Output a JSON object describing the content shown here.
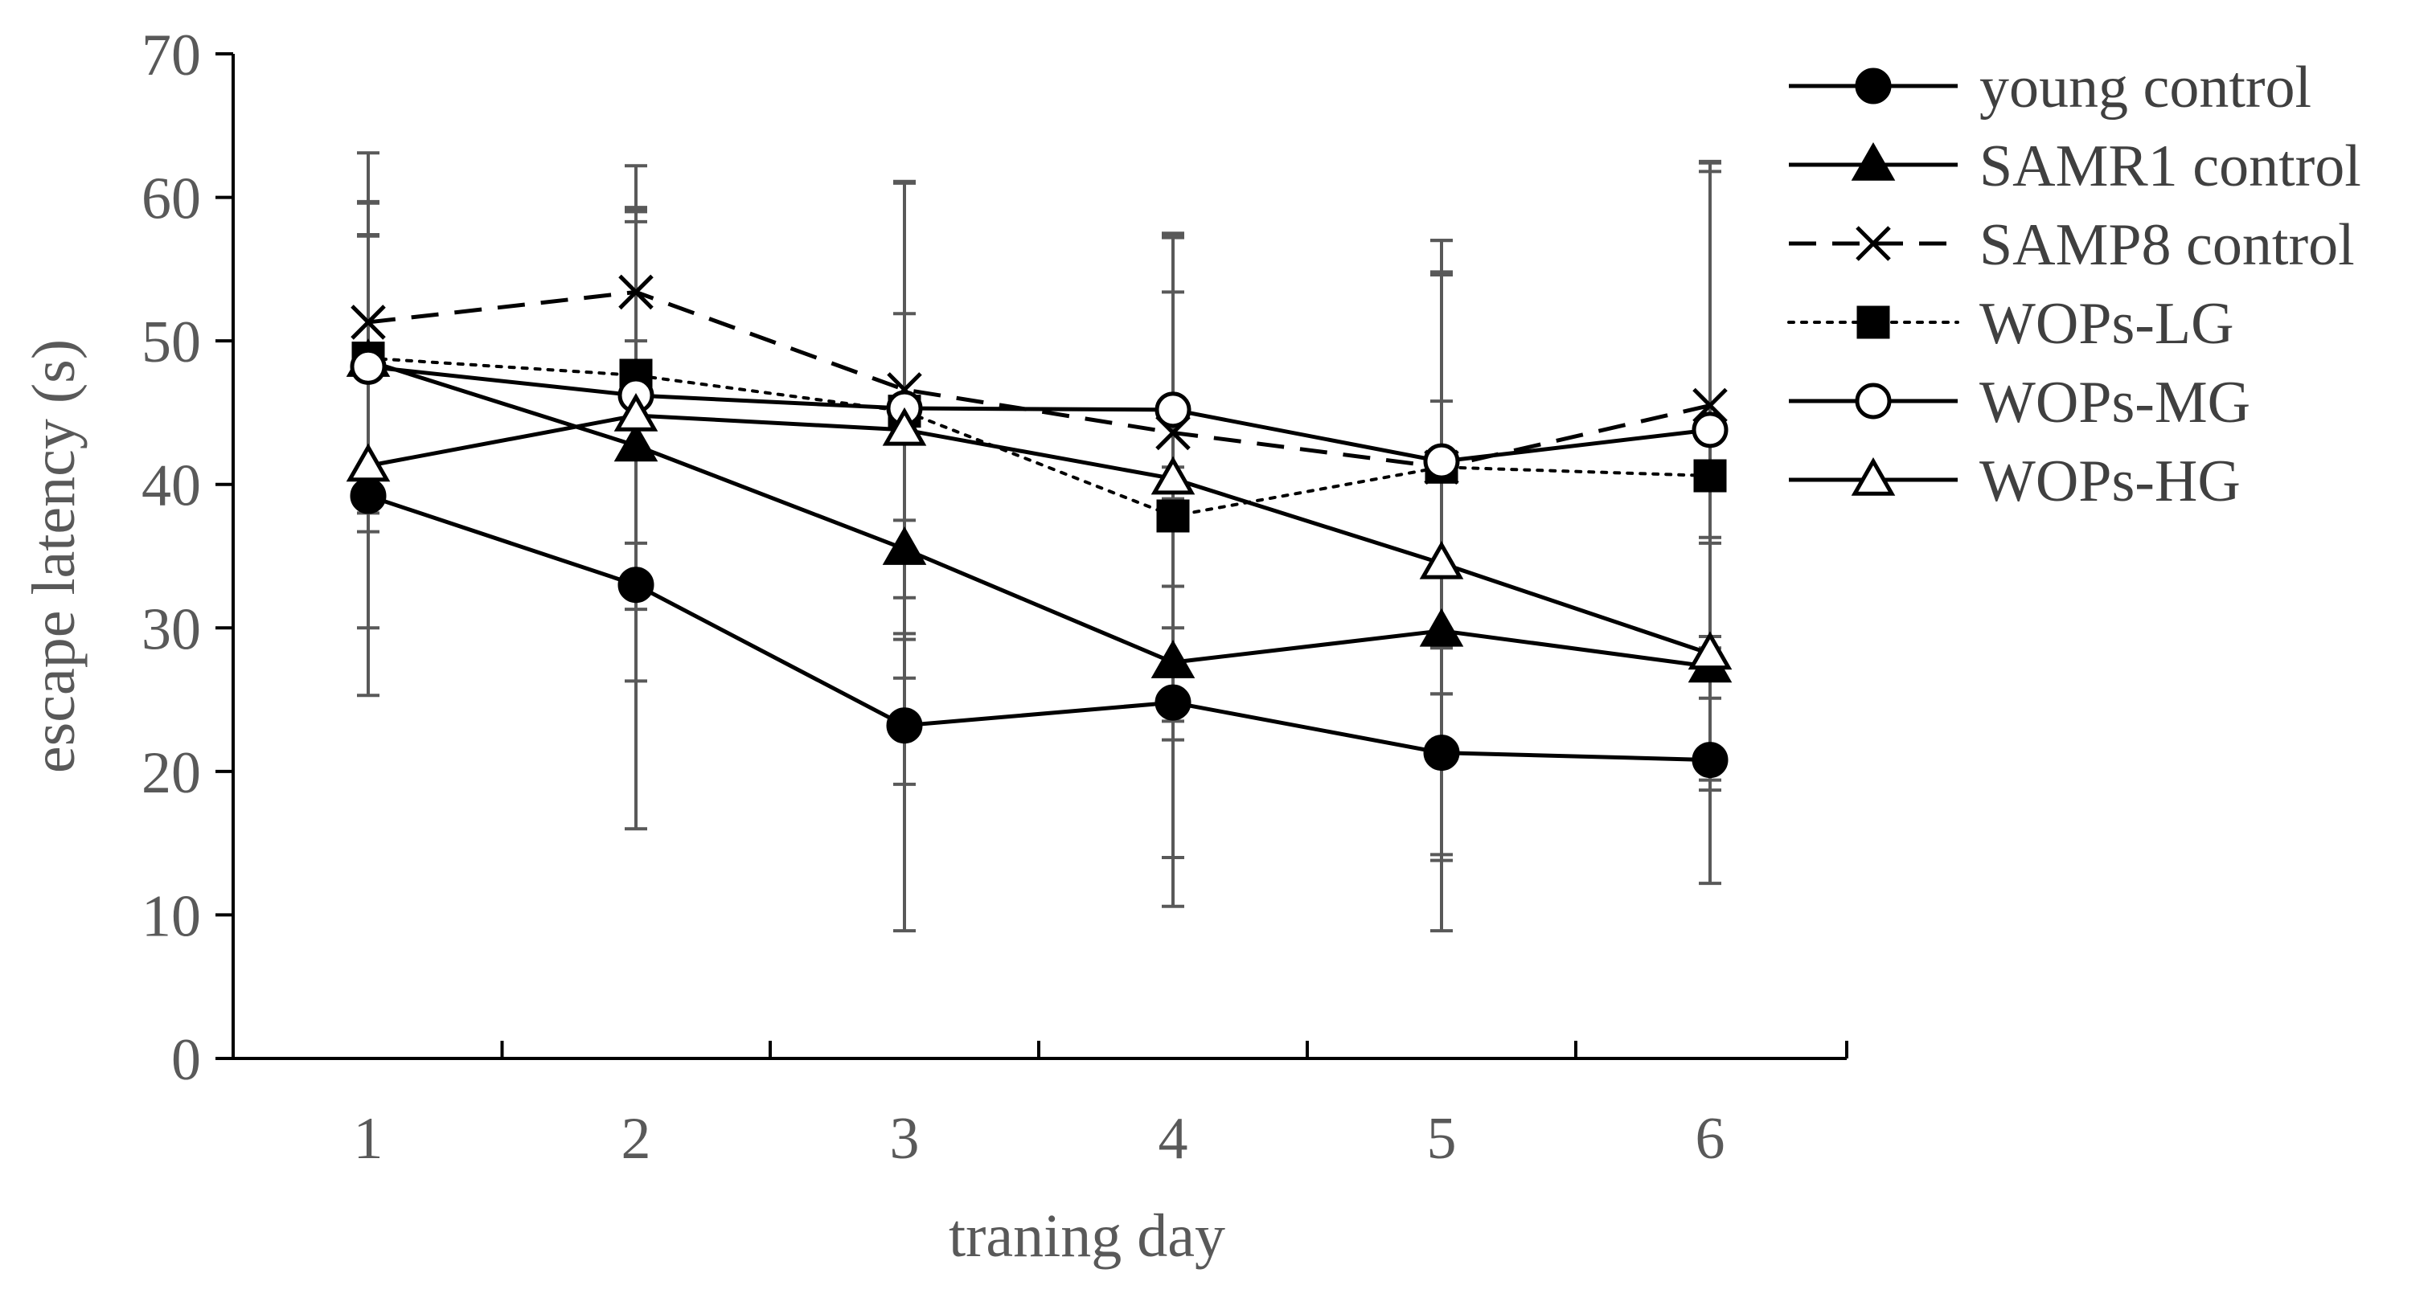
{
  "chart_data": {
    "type": "line",
    "xlabel": "traning day",
    "ylabel": "escape latency (s)",
    "categories": [
      "1",
      "2",
      "3",
      "4",
      "5",
      "6"
    ],
    "ylim": [
      0,
      70
    ],
    "yticks": [
      0,
      10,
      20,
      30,
      40,
      50,
      60,
      70
    ],
    "yticklabels": [
      "0",
      "10",
      "20",
      "30",
      "40",
      "50",
      "60",
      "70"
    ],
    "legend_position": "top-right",
    "series": [
      {
        "name": "young control",
        "line_style": "solid",
        "marker": "filled-circle",
        "values": [
          39.2,
          33.0,
          23.2,
          24.8,
          21.3,
          20.8
        ],
        "error": [
          9.2,
          17.0,
          14.3,
          14.2,
          12.4,
          8.6
        ]
      },
      {
        "name": "SAMR1 control",
        "line_style": "solid",
        "marker": "filled-triangle",
        "values": [
          48.6,
          42.7,
          35.5,
          27.6,
          29.8,
          27.3
        ],
        "error": [
          8.8,
          16.4,
          16.4,
          13.6,
          16.0,
          8.6
        ]
      },
      {
        "name": "SAMP8 control",
        "line_style": "dashed",
        "marker": "x",
        "values": [
          51.3,
          53.4,
          46.6,
          43.6,
          41.2,
          45.5
        ],
        "error": [
          11.8,
          8.8,
          14.5,
          13.6,
          15.8,
          16.9
        ]
      },
      {
        "name": "WOPs-LG",
        "line_style": "dotted",
        "marker": "filled-square",
        "values": [
          48.8,
          47.6,
          45.1,
          37.8,
          41.2,
          40.6
        ],
        "error": [
          10.8,
          11.7,
          15.9,
          15.6,
          15.8,
          21.2
        ]
      },
      {
        "name": "WOPs-MG",
        "line_style": "solid",
        "marker": "open-circle",
        "values": [
          48.2,
          46.2,
          45.3,
          45.2,
          41.6,
          43.8
        ],
        "error": [
          11.5,
          12.8,
          15.7,
          12.3,
          13.0,
          18.7
        ]
      },
      {
        "name": "WOPs-HG",
        "line_style": "solid",
        "marker": "open-triangle",
        "values": [
          41.3,
          44.8,
          43.8,
          40.4,
          34.5,
          28.2
        ],
        "error": [
          16.0,
          13.5,
          17.3,
          16.9,
          20.3,
          8.1
        ]
      }
    ]
  }
}
